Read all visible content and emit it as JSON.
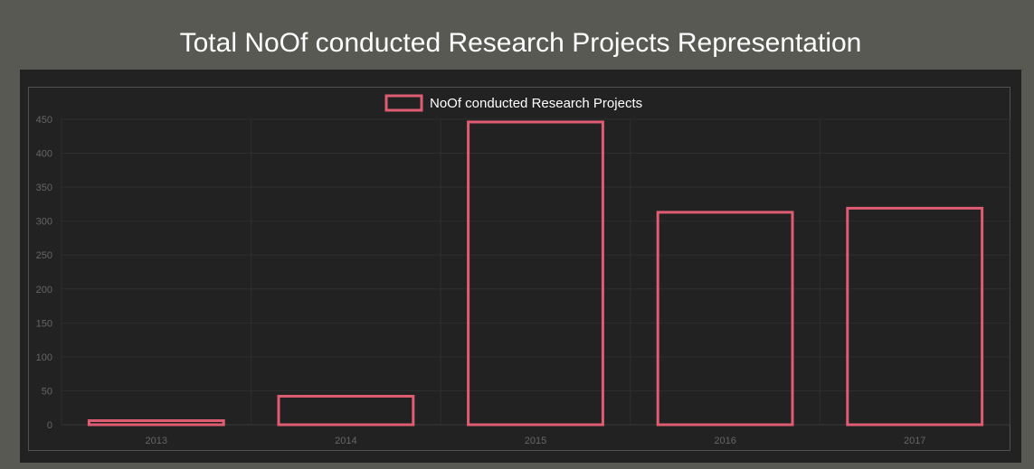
{
  "page": {
    "title": "Total NoOf conducted Research Projects Representation"
  },
  "colors": {
    "page_background": "#585953",
    "panel_background": "#222222",
    "bar_stroke": "#e05c72",
    "grid": "#2e2e2e",
    "tick_text": "#666666",
    "legend_text": "#ffffff"
  },
  "chart_data": {
    "type": "bar",
    "title": "",
    "xlabel": "",
    "ylabel": "",
    "categories": [
      "2013",
      "2014",
      "2015",
      "2016",
      "2017"
    ],
    "series": [
      {
        "name": "NoOf conducted Research Projects",
        "values": [
          6,
          42,
          446,
          313,
          319
        ]
      }
    ],
    "ylim": [
      0,
      450
    ],
    "yticks": [
      0,
      50,
      100,
      150,
      200,
      250,
      300,
      350,
      400,
      450
    ],
    "grid": true,
    "legend_position": "top-center",
    "bar_style": "outline"
  }
}
